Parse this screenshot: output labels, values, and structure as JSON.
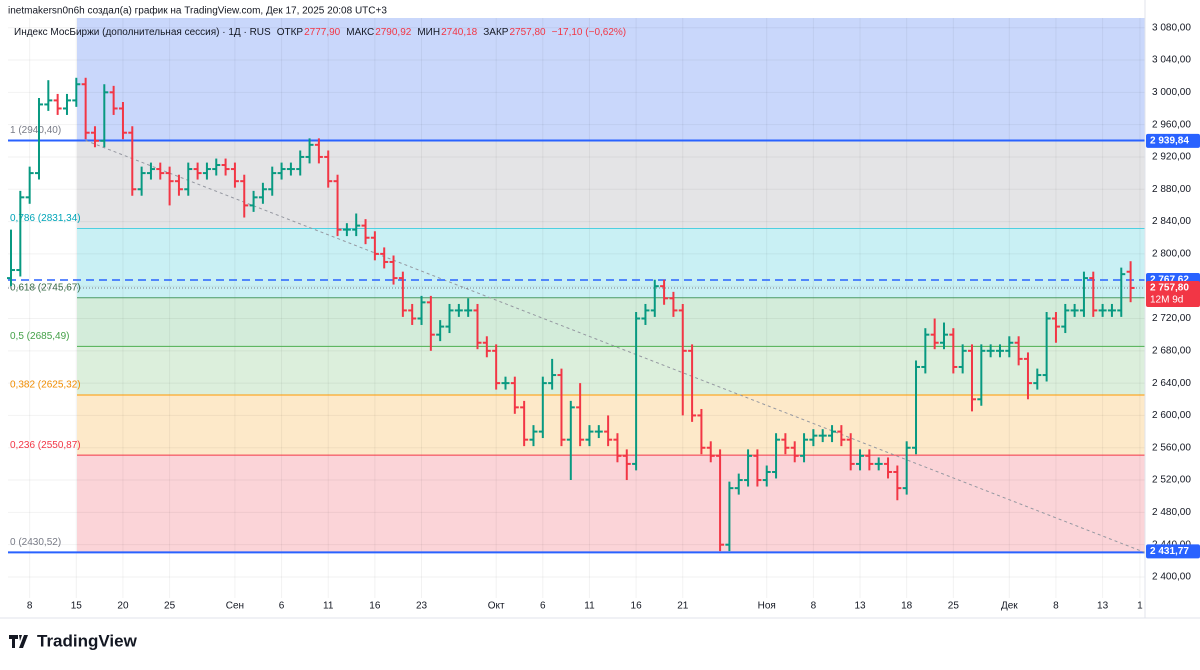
{
  "header": {
    "author_line": "inetmakersn0n6h создал(а) график на TradingView.com, Дек 17, 2025 20:08 UTC+3",
    "brand": "TradingView"
  },
  "legend": {
    "title": "Индекс МосБиржи (дополнительная сессия) · 1Д · RUS",
    "items": [
      {
        "label": "ОТКР",
        "value": "2777,90"
      },
      {
        "label": "МАКС",
        "value": "2790,92"
      },
      {
        "label": "МИН",
        "value": "2740,18"
      },
      {
        "label": "ЗАКР",
        "value": "2757,80"
      }
    ],
    "change": "−17,10 (−0,62%)"
  },
  "chart_data": {
    "type": "ohlc",
    "up_color": "#089981",
    "down_color": "#f23645",
    "categories": [
      null,
      null,
      "8",
      null,
      null,
      null,
      null,
      "15",
      null,
      null,
      null,
      null,
      "20",
      null,
      null,
      null,
      null,
      "25",
      null,
      null,
      null,
      null,
      null,
      null,
      "Сен",
      null,
      null,
      null,
      null,
      "6",
      null,
      null,
      null,
      null,
      "11",
      null,
      null,
      null,
      null,
      "16",
      null,
      null,
      null,
      null,
      "23",
      null,
      null,
      null,
      null,
      null,
      null,
      null,
      "Окт",
      null,
      null,
      null,
      null,
      "6",
      null,
      null,
      null,
      null,
      "11",
      null,
      null,
      null,
      null,
      "16",
      null,
      null,
      null,
      null,
      "21",
      null,
      null,
      null,
      null,
      null,
      null,
      null,
      null,
      "Ноя",
      null,
      null,
      null,
      null,
      "8",
      null,
      null,
      null,
      null,
      "13",
      null,
      null,
      null,
      null,
      "18",
      null,
      null,
      null,
      null,
      "25",
      null,
      null,
      null,
      null,
      null,
      "Дек",
      null,
      null,
      null,
      null,
      "8",
      null,
      null,
      null,
      null,
      "13",
      null,
      null,
      null,
      "1"
    ],
    "open": [
      2770,
      2780,
      2870,
      2900,
      2985,
      2990,
      2980,
      2990,
      3010,
      2950,
      2940,
      3000,
      2980,
      2950,
      2880,
      2900,
      2905,
      2900,
      2890,
      2880,
      2905,
      2900,
      2905,
      2910,
      2905,
      2890,
      2860,
      2870,
      2880,
      2900,
      2905,
      2905,
      2920,
      2935,
      2920,
      2890,
      2830,
      2830,
      2835,
      2820,
      2800,
      2790,
      2770,
      2730,
      2720,
      2740,
      2700,
      2710,
      2730,
      2730,
      2730,
      2690,
      2680,
      2640,
      2640,
      2610,
      2570,
      2580,
      2640,
      2650,
      2570,
      2610,
      2570,
      2580,
      2580,
      2570,
      2550,
      2540,
      2720,
      2730,
      2760,
      2745,
      2730,
      2680,
      2600,
      2560,
      2550,
      2440,
      2510,
      2520,
      2550,
      2520,
      2530,
      2570,
      2560,
      2550,
      2570,
      2575,
      2575,
      2580,
      2570,
      2540,
      2550,
      2540,
      2540,
      2530,
      2510,
      2560,
      2660,
      2700,
      2690,
      2700,
      2660,
      2680,
      2620,
      2680,
      2680,
      2680,
      2690,
      2670,
      2640,
      2650,
      2720,
      2710,
      2730,
      2730,
      2770,
      2730,
      2730,
      2730,
      2777.9,
      null
    ],
    "high": [
      2830,
      2878,
      2908,
      2993,
      3015,
      2998,
      2998,
      3018,
      3018,
      2958,
      3010,
      3008,
      2988,
      2958,
      2908,
      2913,
      2913,
      2908,
      2898,
      2913,
      2913,
      2913,
      2918,
      2918,
      2913,
      2898,
      2878,
      2888,
      2908,
      2913,
      2913,
      2928,
      2943,
      2943,
      2928,
      2898,
      2838,
      2850,
      2843,
      2828,
      2808,
      2798,
      2778,
      2738,
      2748,
      2748,
      2718,
      2738,
      2738,
      2745,
      2738,
      2698,
      2688,
      2648,
      2648,
      2618,
      2588,
      2648,
      2670,
      2658,
      2618,
      2640,
      2588,
      2588,
      2600,
      2578,
      2558,
      2728,
      2738,
      2768,
      2768,
      2753,
      2738,
      2688,
      2608,
      2568,
      2558,
      2518,
      2528,
      2558,
      2558,
      2538,
      2578,
      2578,
      2568,
      2578,
      2583,
      2583,
      2588,
      2588,
      2578,
      2558,
      2558,
      2548,
      2548,
      2538,
      2568,
      2668,
      2708,
      2720,
      2715,
      2708,
      2688,
      2688,
      2688,
      2688,
      2688,
      2698,
      2698,
      2678,
      2658,
      2728,
      2728,
      2738,
      2738,
      2778,
      2778,
      2738,
      2738,
      2783,
      2790.92,
      null
    ],
    "low": [
      2760,
      2772,
      2862,
      2892,
      2977,
      2972,
      2972,
      2982,
      2942,
      2932,
      2932,
      2972,
      2942,
      2872,
      2872,
      2892,
      2892,
      2860,
      2872,
      2872,
      2892,
      2892,
      2897,
      2897,
      2882,
      2845,
      2852,
      2862,
      2872,
      2892,
      2897,
      2897,
      2912,
      2912,
      2882,
      2822,
      2822,
      2822,
      2812,
      2792,
      2782,
      2762,
      2722,
      2712,
      2712,
      2680,
      2692,
      2702,
      2722,
      2722,
      2682,
      2672,
      2632,
      2632,
      2602,
      2562,
      2562,
      2572,
      2632,
      2562,
      2520,
      2562,
      2562,
      2572,
      2562,
      2542,
      2520,
      2532,
      2712,
      2722,
      2737,
      2722,
      2600,
      2592,
      2552,
      2542,
      2432,
      2432,
      2502,
      2512,
      2512,
      2512,
      2522,
      2552,
      2542,
      2542,
      2562,
      2567,
      2567,
      2562,
      2532,
      2532,
      2532,
      2532,
      2522,
      2495,
      2502,
      2552,
      2652,
      2682,
      2682,
      2652,
      2652,
      2605,
      2612,
      2672,
      2672,
      2672,
      2662,
      2620,
      2632,
      2642,
      2690,
      2702,
      2722,
      2722,
      2722,
      2722,
      2722,
      2722,
      2740.18,
      null
    ],
    "close": [
      2780,
      2870,
      2900,
      2985,
      2990,
      2980,
      2990,
      3010,
      2950,
      2940,
      3000,
      2980,
      2950,
      2880,
      2900,
      2905,
      2900,
      2890,
      2880,
      2905,
      2900,
      2905,
      2910,
      2905,
      2890,
      2860,
      2870,
      2880,
      2900,
      2905,
      2905,
      2920,
      2935,
      2920,
      2890,
      2830,
      2830,
      2835,
      2820,
      2800,
      2790,
      2770,
      2730,
      2720,
      2740,
      2700,
      2710,
      2730,
      2730,
      2730,
      2690,
      2680,
      2640,
      2640,
      2610,
      2570,
      2580,
      2640,
      2650,
      2570,
      2610,
      2570,
      2580,
      2580,
      2570,
      2550,
      2540,
      2720,
      2730,
      2760,
      2745,
      2730,
      2680,
      2600,
      2560,
      2550,
      2440,
      2510,
      2520,
      2550,
      2520,
      2530,
      2570,
      2560,
      2550,
      2570,
      2575,
      2575,
      2580,
      2570,
      2540,
      2550,
      2540,
      2540,
      2530,
      2510,
      2560,
      2660,
      2700,
      2690,
      2700,
      2660,
      2680,
      2620,
      2680,
      2680,
      2680,
      2690,
      2670,
      2640,
      2650,
      2720,
      2710,
      2730,
      2730,
      2770,
      2730,
      2730,
      2730,
      2774.9,
      2757.8,
      null
    ],
    "ylim": [
      2374,
      3092
    ],
    "yticks": [
      {
        "value": 2400,
        "label": "2 400,00"
      },
      {
        "value": 2440,
        "label": "2 440,00"
      },
      {
        "value": 2480,
        "label": "2 480,00"
      },
      {
        "value": 2520,
        "label": "2 520,00"
      },
      {
        "value": 2560,
        "label": "2 560,00"
      },
      {
        "value": 2600,
        "label": "2 600,00"
      },
      {
        "value": 2640,
        "label": "2 640,00"
      },
      {
        "value": 2680,
        "label": "2 680,00"
      },
      {
        "value": 2720,
        "label": "2 720,00"
      },
      {
        "value": 2760,
        "label": "2 760,00"
      },
      {
        "value": 2800,
        "label": "2 800,00"
      },
      {
        "value": 2840,
        "label": "2 840,00"
      },
      {
        "value": 2880,
        "label": "2 880,00"
      },
      {
        "value": 2920,
        "label": "2 920,00"
      },
      {
        "value": 2960,
        "label": "2 960,00"
      },
      {
        "value": 3000,
        "label": "3 000,00"
      },
      {
        "value": 3040,
        "label": "3 040,00"
      },
      {
        "value": 3080,
        "label": "3 080,00"
      }
    ],
    "fib_fill_above": "#c9d7fb",
    "fib_levels": [
      {
        "label": "1 (2940,40)",
        "value": 2940.4,
        "color": "#2962ff",
        "text_color": "#787b86",
        "fill": "#e4e4e6",
        "width": 2
      },
      {
        "label": "0,786 (2831,34)",
        "value": 2831.34,
        "color": "#4dd0e1",
        "text_color": "#00a5b8",
        "fill": "#c9f0f4",
        "width": 1
      },
      {
        "label": "0,618 (2745,67)",
        "value": 2745.67,
        "color": "#4c9a64",
        "text_color": "#3b6e4a",
        "fill": "#d3ecda",
        "width": 1
      },
      {
        "label": "0,5 (2685,49)",
        "value": 2685.49,
        "color": "#4caf50",
        "text_color": "#43a047",
        "fill": "#dcefdc",
        "width": 1
      },
      {
        "label": "0,382 (2625,32)",
        "value": 2625.32,
        "color": "#ff9800",
        "text_color": "#f08c00",
        "fill": "#fde9c9",
        "width": 1
      },
      {
        "label": "0,236 (2550,87)",
        "value": 2550.87,
        "color": "#f23645",
        "text_color": "#f23645",
        "fill": "#fbd4d8",
        "width": 1
      },
      {
        "label": "0 (2430,52)",
        "value": 2430.52,
        "color": "#2962ff",
        "text_color": "#787b86",
        "fill": null,
        "width": 2
      }
    ],
    "trend_line": {
      "x": [
        8,
        121.5
      ],
      "y": [
        2940.4,
        2430.52
      ],
      "color": "#9598a1"
    },
    "price_tags": [
      {
        "value": 2939.84,
        "label": "2 939,84",
        "color": "#2962ff",
        "line": null
      },
      {
        "value": 2767.62,
        "label": "2 767,62",
        "color": "#2962ff",
        "line": "dashed"
      },
      {
        "value": 2757.8,
        "label": "2 757,80",
        "color": "#f23645",
        "line": "dotted",
        "note": "12М 9d"
      },
      {
        "value": 2431.77,
        "label": "2 431,77",
        "color": "#2962ff",
        "line": null
      }
    ]
  }
}
